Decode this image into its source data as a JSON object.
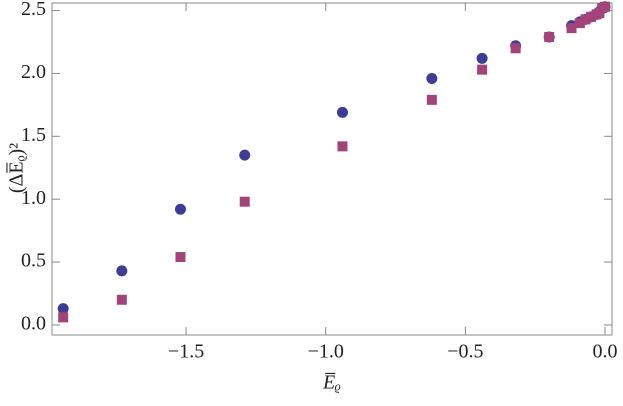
{
  "chart_data": {
    "type": "scatter",
    "xlabel": "E̅ᵨ",
    "ylabel": "(ΔE̅ᵨ)²",
    "xlim": [
      -1.98,
      0.025
    ],
    "ylim": [
      -0.08,
      2.56
    ],
    "xticks": [
      {
        "value": -1.5,
        "label": "−1.5"
      },
      {
        "value": -1.0,
        "label": "−1.0"
      },
      {
        "value": -0.5,
        "label": "−0.5"
      },
      {
        "value": 0,
        "label": "0.0"
      }
    ],
    "yticks": [
      {
        "value": 0,
        "label": "0.0"
      },
      {
        "value": 0.5,
        "label": "0.5"
      },
      {
        "value": 1,
        "label": "1.0"
      },
      {
        "value": 1.5,
        "label": "1.5"
      },
      {
        "value": 2,
        "label": "2.0"
      },
      {
        "value": 2.5,
        "label": "2.5"
      }
    ],
    "series": [
      {
        "color": "#3d3d98",
        "marker": "circle",
        "x": [
          -1.94,
          -1.73,
          -1.52,
          -1.29,
          -0.94,
          -0.62,
          -0.44,
          -0.32,
          -0.2,
          -0.12,
          -0.09,
          -0.07,
          -0.05,
          -0.03,
          -0.02,
          -0.01,
          0.0
        ],
        "values": [
          0.13,
          0.43,
          0.92,
          1.35,
          1.69,
          1.96,
          2.12,
          2.22,
          2.29,
          2.38,
          2.41,
          2.43,
          2.45,
          2.47,
          2.49,
          2.52,
          2.53
        ]
      },
      {
        "color": "#a2447a",
        "marker": "square",
        "x": [
          -1.94,
          -1.73,
          -1.52,
          -1.29,
          -0.94,
          -0.62,
          -0.44,
          -0.32,
          -0.2,
          -0.12,
          -0.09,
          -0.07,
          -0.05,
          -0.03,
          -0.02,
          -0.01,
          0.0
        ],
        "values": [
          0.06,
          0.2,
          0.54,
          0.98,
          1.42,
          1.79,
          2.03,
          2.2,
          2.29,
          2.36,
          2.4,
          2.43,
          2.45,
          2.47,
          2.48,
          2.52,
          2.53
        ]
      }
    ]
  }
}
